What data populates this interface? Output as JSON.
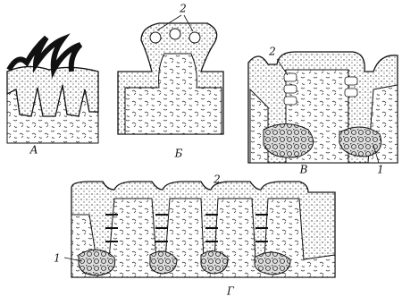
{
  "panels": [
    {
      "label": "А"
    },
    {
      "label": "Б",
      "annotations": [
        "2"
      ]
    },
    {
      "label": "В",
      "annotations": [
        "2",
        "1"
      ]
    },
    {
      "label": "Г",
      "annotations": [
        "2",
        "1"
      ]
    }
  ]
}
